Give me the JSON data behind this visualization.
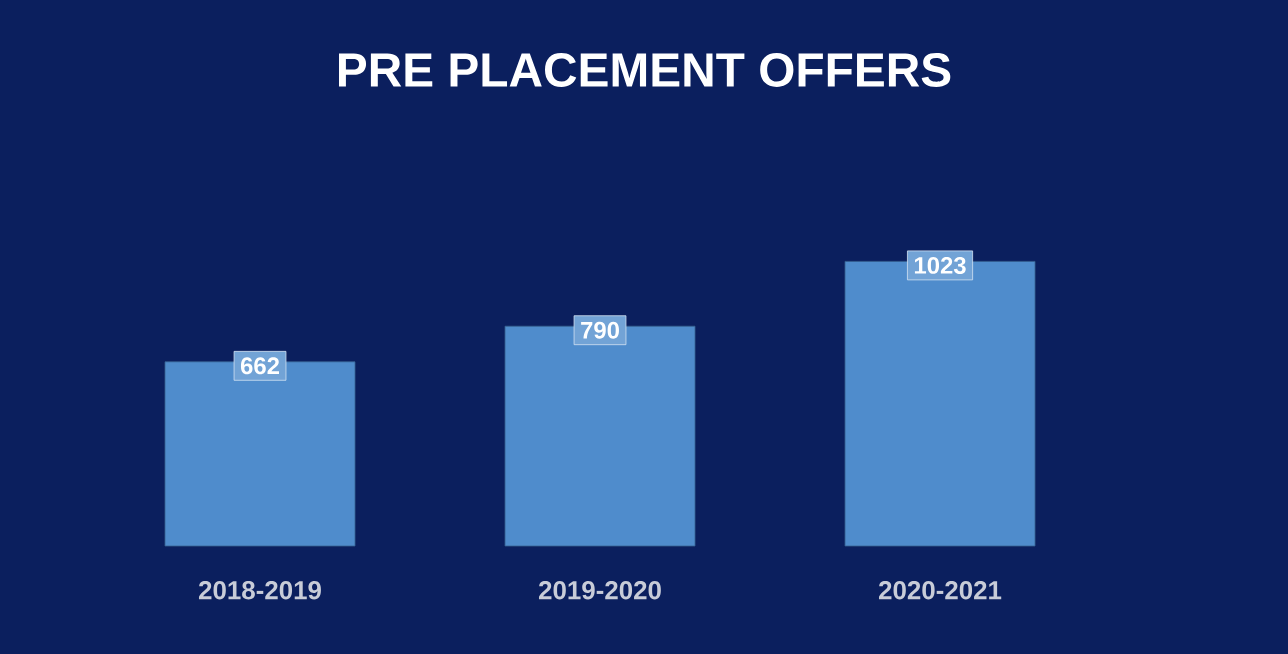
{
  "chart_data": {
    "type": "bar",
    "title": "PRE PLACEMENT OFFERS",
    "categories": [
      "2018-2019",
      "2019-2020",
      "2020-2021"
    ],
    "values": [
      662,
      790,
      1023
    ],
    "color": "#4f8ccc",
    "data_labels": true
  }
}
